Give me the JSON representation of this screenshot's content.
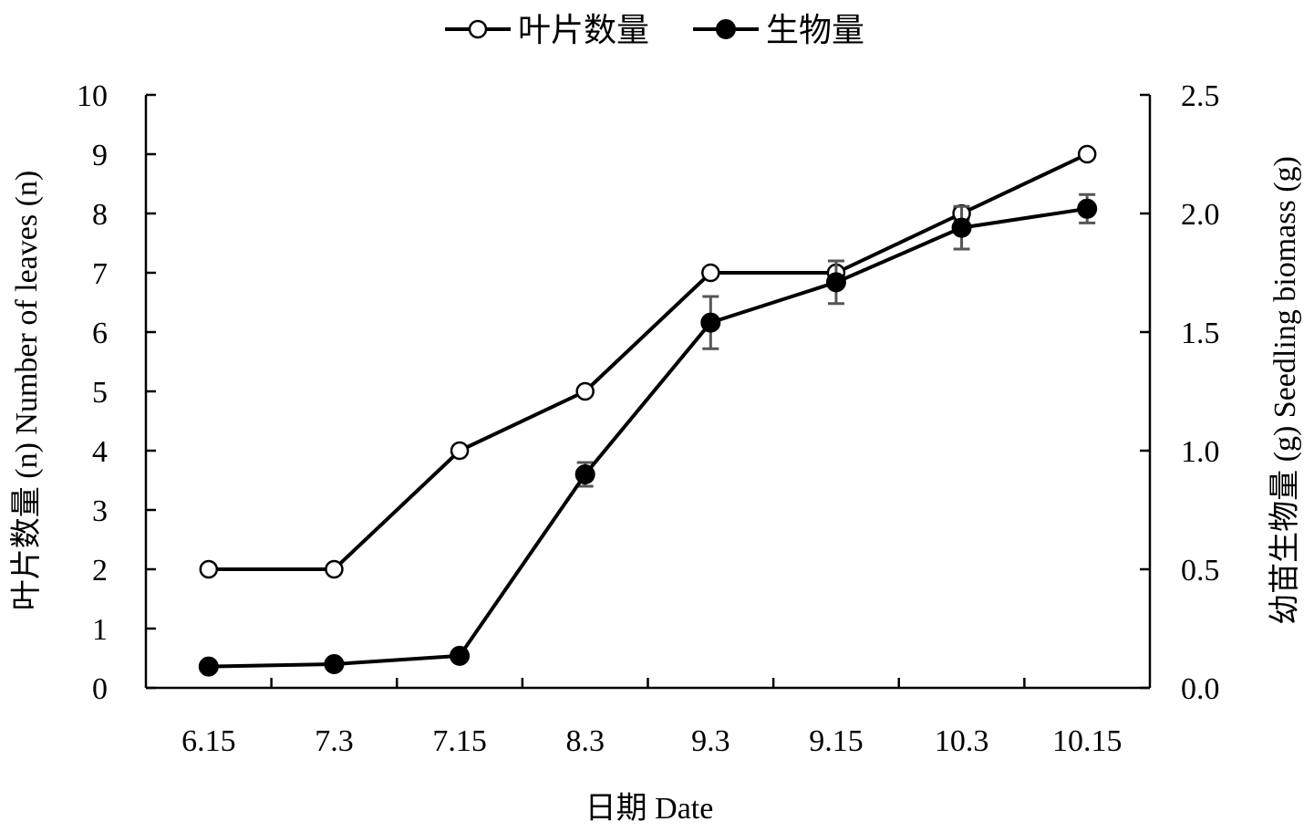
{
  "chart_data": {
    "type": "line",
    "title": "",
    "categories": [
      "6.15",
      "7.3",
      "7.15",
      "8.3",
      "9.3",
      "9.15",
      "10.3",
      "10.15"
    ],
    "xlabel": "日期 Date",
    "ylabel_left": "叶片数量 (n) Number of leaves (n)",
    "ylabel_right": "幼苗生物量 (g) Seedling biomass (g)",
    "y_left": {
      "min": 0,
      "max": 10,
      "step": 1,
      "tick_labels": [
        "0",
        "1",
        "2",
        "3",
        "4",
        "5",
        "6",
        "7",
        "8",
        "9",
        "10"
      ]
    },
    "y_right": {
      "min": 0,
      "max": 2.5,
      "step": 0.5,
      "tick_labels": [
        "0.0",
        "0.5",
        "1.0",
        "1.5",
        "2.0",
        "2.5"
      ]
    },
    "grid": false,
    "legend_position": "top-center",
    "series": [
      {
        "name": "叶片数量",
        "axis": "left",
        "marker": "open-circle",
        "values": [
          2,
          2,
          4,
          5,
          7,
          7,
          8,
          9
        ],
        "errors": [
          0,
          0,
          0,
          0,
          0,
          0.2,
          0.1,
          0
        ]
      },
      {
        "name": "生物量",
        "axis": "right",
        "marker": "filled-circle",
        "values": [
          0.09,
          0.1,
          0.135,
          0.9,
          1.54,
          1.71,
          1.94,
          2.02
        ],
        "errors": [
          0,
          0,
          0,
          0.05,
          0.11,
          0.09,
          0.09,
          0.06
        ]
      }
    ],
    "colors": {
      "line": "#000000",
      "error_bar": "#555555",
      "open_fill": "#ffffff"
    }
  }
}
